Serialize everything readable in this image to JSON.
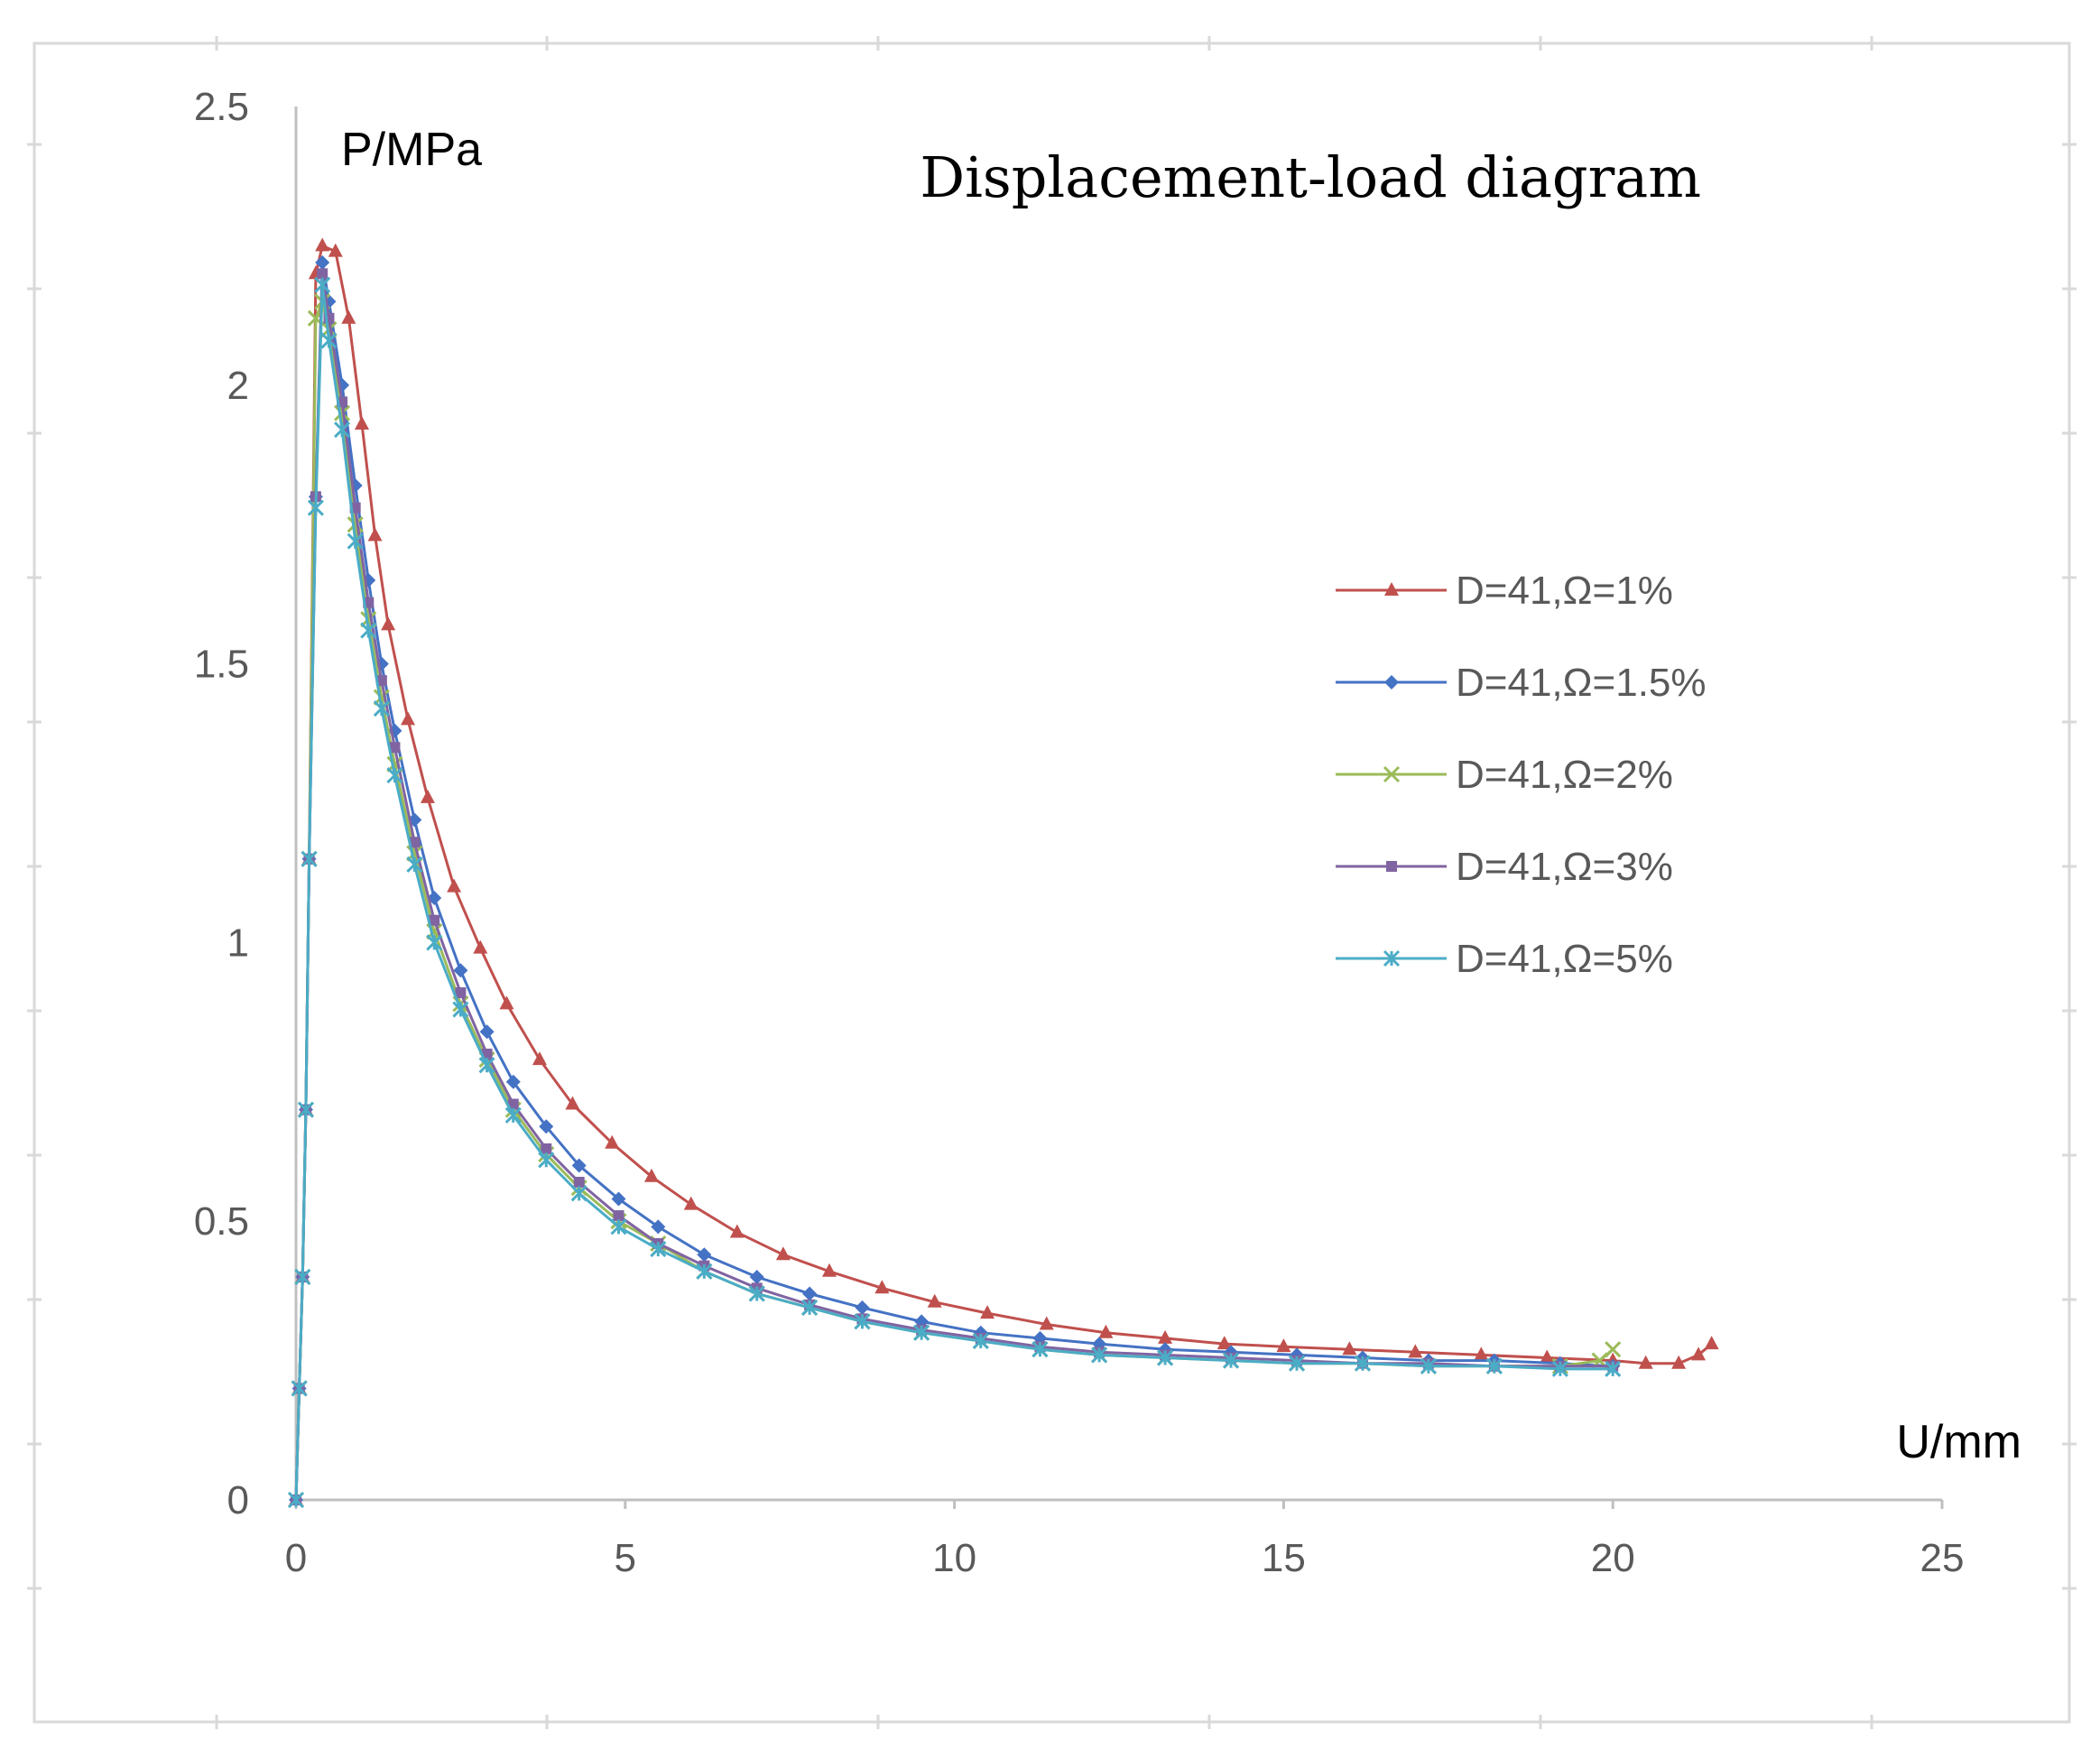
{
  "chart_data": {
    "type": "line",
    "title": "Displacement-load diagram",
    "xlabel": "U/mm",
    "ylabel": "P/MPa",
    "xlim": [
      0,
      25
    ],
    "ylim": [
      0,
      2.5
    ],
    "xticks": [
      "0",
      "5",
      "10",
      "15",
      "20",
      "25"
    ],
    "yticks": [
      "0",
      "0.5",
      "1",
      "1.5",
      "2",
      "2.5"
    ],
    "grid": false,
    "legend_position": "right",
    "series": [
      {
        "name": "D=41,Ω=1%",
        "color": "#C0504D",
        "marker": "triangle",
        "x": [
          0,
          0.05,
          0.1,
          0.15,
          0.2,
          0.3,
          0.4,
          0.6,
          0.8,
          1.0,
          1.2,
          1.4,
          1.7,
          2.0,
          2.4,
          2.8,
          3.2,
          3.7,
          4.2,
          4.8,
          5.4,
          6.0,
          6.7,
          7.4,
          8.1,
          8.9,
          9.7,
          10.5,
          11.4,
          12.3,
          13.2,
          14.1,
          15.0,
          16.0,
          17.0,
          18.0,
          19.0,
          20.0,
          20.5,
          21.0,
          21.3,
          21.5
        ],
        "y": [
          0,
          0.2,
          0.4,
          0.7,
          1.15,
          2.2,
          2.25,
          2.24,
          2.12,
          1.93,
          1.73,
          1.57,
          1.4,
          1.26,
          1.1,
          0.99,
          0.89,
          0.79,
          0.71,
          0.64,
          0.58,
          0.53,
          0.48,
          0.44,
          0.41,
          0.38,
          0.355,
          0.335,
          0.315,
          0.3,
          0.29,
          0.28,
          0.275,
          0.27,
          0.265,
          0.26,
          0.255,
          0.25,
          0.245,
          0.245,
          0.26,
          0.28
        ]
      },
      {
        "name": "D=41,Ω=1.5%",
        "color": "#4472C4",
        "marker": "diamond",
        "x": [
          0,
          0.05,
          0.1,
          0.15,
          0.2,
          0.3,
          0.4,
          0.5,
          0.7,
          0.9,
          1.1,
          1.3,
          1.5,
          1.8,
          2.1,
          2.5,
          2.9,
          3.3,
          3.8,
          4.3,
          4.9,
          5.5,
          6.2,
          7.0,
          7.8,
          8.6,
          9.5,
          10.4,
          11.3,
          12.2,
          13.2,
          14.2,
          15.2,
          16.2,
          17.2,
          18.2,
          19.2,
          20.0
        ],
        "y": [
          0,
          0.2,
          0.4,
          0.7,
          1.15,
          1.8,
          2.22,
          2.15,
          2.0,
          1.82,
          1.65,
          1.5,
          1.38,
          1.22,
          1.08,
          0.95,
          0.84,
          0.75,
          0.67,
          0.6,
          0.54,
          0.49,
          0.44,
          0.4,
          0.37,
          0.345,
          0.32,
          0.3,
          0.29,
          0.28,
          0.27,
          0.265,
          0.26,
          0.255,
          0.25,
          0.25,
          0.245,
          0.24
        ]
      },
      {
        "name": "D=41,Ω=2%",
        "color": "#9BBB59",
        "marker": "x",
        "x": [
          0,
          0.05,
          0.1,
          0.15,
          0.2,
          0.3,
          0.4,
          0.5,
          0.7,
          0.9,
          1.1,
          1.3,
          1.5,
          1.8,
          2.1,
          2.5,
          2.9,
          3.3,
          3.8,
          4.3,
          4.9,
          5.5,
          6.2,
          7.0,
          7.8,
          8.6,
          9.5,
          10.4,
          11.3,
          12.2,
          13.2,
          14.2,
          15.2,
          16.2,
          17.2,
          18.2,
          19.2,
          19.8,
          20.0
        ],
        "y": [
          0,
          0.2,
          0.4,
          0.7,
          1.15,
          2.12,
          2.15,
          2.1,
          1.95,
          1.75,
          1.58,
          1.44,
          1.32,
          1.16,
          1.02,
          0.89,
          0.79,
          0.7,
          0.62,
          0.56,
          0.5,
          0.46,
          0.41,
          0.37,
          0.345,
          0.32,
          0.3,
          0.285,
          0.27,
          0.26,
          0.255,
          0.25,
          0.245,
          0.245,
          0.24,
          0.24,
          0.24,
          0.25,
          0.27
        ]
      },
      {
        "name": "D=41,Ω=3%",
        "color": "#8064A2",
        "marker": "square",
        "x": [
          0,
          0.05,
          0.1,
          0.15,
          0.2,
          0.3,
          0.4,
          0.5,
          0.7,
          0.9,
          1.1,
          1.3,
          1.5,
          1.8,
          2.1,
          2.5,
          2.9,
          3.3,
          3.8,
          4.3,
          4.9,
          5.5,
          6.2,
          7.0,
          7.8,
          8.6,
          9.5,
          10.4,
          11.3,
          12.2,
          13.2,
          14.2,
          15.2,
          16.2,
          17.2,
          18.2,
          19.2,
          20.0
        ],
        "y": [
          0,
          0.2,
          0.4,
          0.7,
          1.15,
          1.8,
          2.2,
          2.12,
          1.97,
          1.78,
          1.61,
          1.47,
          1.35,
          1.18,
          1.04,
          0.91,
          0.8,
          0.71,
          0.63,
          0.57,
          0.51,
          0.46,
          0.42,
          0.38,
          0.35,
          0.325,
          0.305,
          0.29,
          0.275,
          0.265,
          0.26,
          0.255,
          0.25,
          0.245,
          0.245,
          0.24,
          0.24,
          0.24
        ]
      },
      {
        "name": "D=41,Ω=5%",
        "color": "#4BACC6",
        "marker": "asterisk",
        "x": [
          0,
          0.05,
          0.1,
          0.15,
          0.2,
          0.3,
          0.4,
          0.5,
          0.7,
          0.9,
          1.1,
          1.3,
          1.5,
          1.8,
          2.1,
          2.5,
          2.9,
          3.3,
          3.8,
          4.3,
          4.9,
          5.5,
          6.2,
          7.0,
          7.8,
          8.6,
          9.5,
          10.4,
          11.3,
          12.2,
          13.2,
          14.2,
          15.2,
          16.2,
          17.2,
          18.2,
          19.2,
          20.0
        ],
        "y": [
          0,
          0.2,
          0.4,
          0.7,
          1.15,
          1.78,
          2.18,
          2.08,
          1.92,
          1.72,
          1.56,
          1.42,
          1.3,
          1.14,
          1.0,
          0.88,
          0.78,
          0.69,
          0.61,
          0.55,
          0.49,
          0.45,
          0.41,
          0.37,
          0.345,
          0.32,
          0.3,
          0.285,
          0.27,
          0.26,
          0.255,
          0.25,
          0.245,
          0.245,
          0.24,
          0.24,
          0.235,
          0.235
        ]
      }
    ]
  }
}
